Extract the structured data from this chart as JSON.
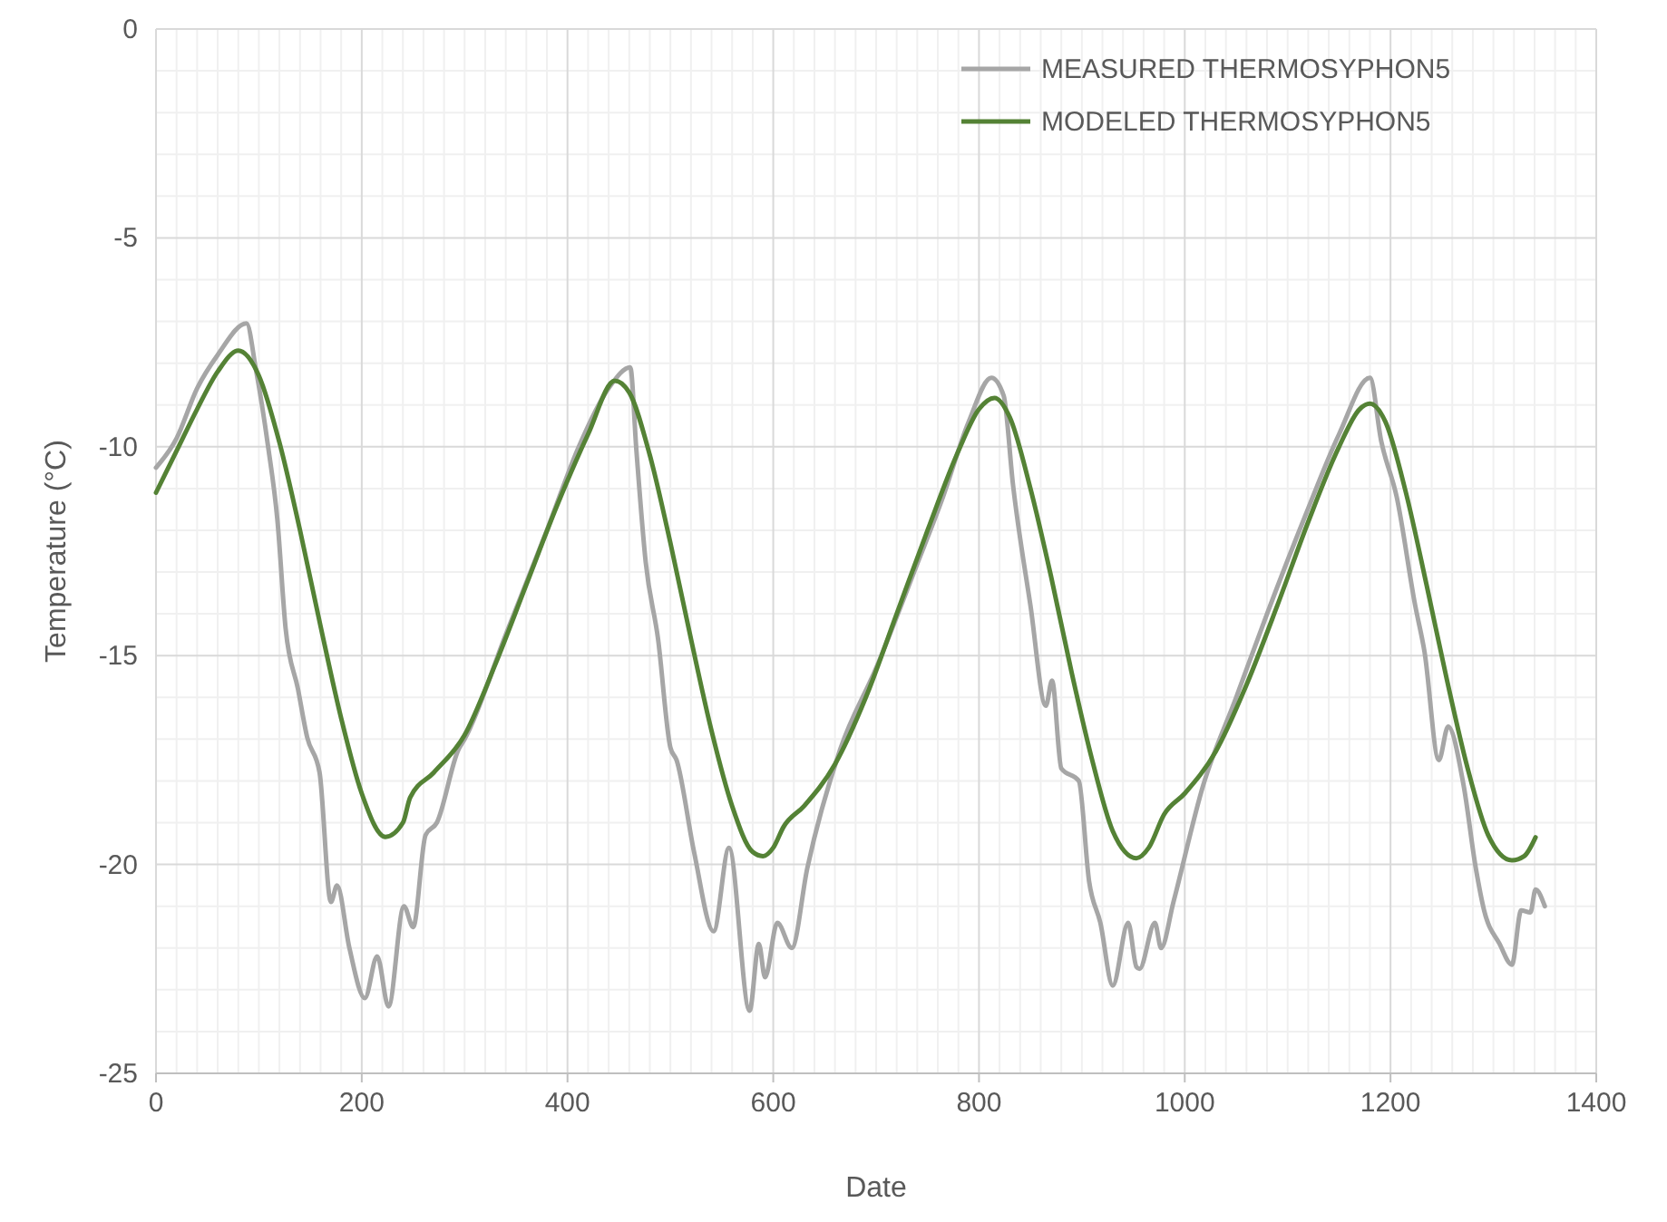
{
  "chart_data": {
    "type": "line",
    "xlabel": "Date",
    "ylabel": "Temperature (°C)",
    "xlim": [
      0,
      1400
    ],
    "ylim": [
      -25,
      0
    ],
    "xticks": [
      0,
      200,
      400,
      600,
      800,
      1000,
      1200,
      1400
    ],
    "yticks": [
      -25,
      -20,
      -15,
      -10,
      -5,
      0
    ],
    "grid": true,
    "legend": "top right",
    "line_style": "solid",
    "series": [
      {
        "name": "MEASURED THERMOSYPHON5",
        "color": "#a6a6a6",
        "x": [
          0,
          20,
          40,
          60,
          88,
          97,
          109,
          118,
          126,
          138,
          147,
          159,
          170,
          176,
          188,
          203,
          215,
          226,
          241,
          250,
          262,
          273,
          294,
          300,
          340,
          380,
          411,
          440,
          461,
          467,
          476,
          488,
          500,
          506,
          523,
          542,
          557,
          577,
          586,
          592,
          604,
          618,
          633,
          665,
          700,
          740,
          765,
          790,
          812,
          824,
          833,
          850,
          865,
          871,
          880,
          897,
          907,
          918,
          930,
          945,
          953,
          956,
          971,
          977,
          989,
          1018,
          1050,
          1080,
          1118,
          1150,
          1180,
          1191,
          1206,
          1224,
          1233,
          1247,
          1256,
          1271,
          1283,
          1291,
          1306,
          1318,
          1327,
          1336,
          1341,
          1350
        ],
        "values": [
          -10.5,
          -9.8,
          -8.6,
          -7.8,
          -7.05,
          -8.13,
          -10.0,
          -11.75,
          -14.35,
          -15.8,
          -16.96,
          -17.8,
          -20.9,
          -20.5,
          -22.0,
          -23.2,
          -22.2,
          -23.4,
          -21.0,
          -21.5,
          -19.3,
          -19.0,
          -17.25,
          -17.0,
          -14.5,
          -12.0,
          -10.0,
          -8.6,
          -8.1,
          -10.1,
          -12.76,
          -14.6,
          -17.2,
          -17.5,
          -19.7,
          -21.6,
          -19.6,
          -23.5,
          -21.9,
          -22.7,
          -21.4,
          -22.0,
          -20.1,
          -17.25,
          -15.3,
          -12.8,
          -11.2,
          -9.4,
          -8.35,
          -8.78,
          -10.9,
          -13.8,
          -16.2,
          -15.6,
          -17.7,
          -18.0,
          -20.4,
          -21.4,
          -22.9,
          -21.4,
          -22.45,
          -22.5,
          -21.4,
          -22.0,
          -20.9,
          -18.1,
          -16.0,
          -14.0,
          -11.6,
          -9.7,
          -8.35,
          -9.87,
          -11.2,
          -13.8,
          -14.9,
          -17.5,
          -16.7,
          -18.1,
          -20.1,
          -21.1,
          -21.9,
          -22.4,
          -21.1,
          -21.15,
          -20.6,
          -21.0
        ]
      },
      {
        "name": "MODELED THERMOSYPHON5",
        "color": "#548235",
        "x": [
          0,
          20,
          40,
          60,
          80,
          100,
          120,
          140,
          160,
          180,
          200,
          223,
          240,
          247,
          270,
          300,
          330,
          360,
          390,
          420,
          446,
          460,
          480,
          500,
          520,
          540,
          560,
          580,
          590,
          600,
          610,
          630,
          660,
          690,
          720,
          750,
          780,
          800,
          815,
          830,
          850,
          870,
          890,
          910,
          930,
          953,
          965,
          980,
          1000,
          1030,
          1060,
          1090,
          1120,
          1150,
          1170,
          1180,
          1195,
          1215,
          1235,
          1255,
          1275,
          1295,
          1318,
          1330,
          1341
        ],
        "values": [
          -11.1,
          -10.1,
          -9.1,
          -8.2,
          -7.7,
          -8.3,
          -9.9,
          -12.0,
          -14.3,
          -16.5,
          -18.3,
          -19.34,
          -19.0,
          -18.4,
          -17.8,
          -16.9,
          -15.2,
          -13.3,
          -11.4,
          -9.7,
          -8.42,
          -8.7,
          -10.2,
          -12.3,
          -14.6,
          -16.8,
          -18.6,
          -19.7,
          -19.8,
          -19.6,
          -19.1,
          -18.6,
          -17.6,
          -16.0,
          -14.0,
          -12.0,
          -10.1,
          -9.1,
          -8.83,
          -9.3,
          -11.0,
          -13.1,
          -15.4,
          -17.5,
          -19.2,
          -19.85,
          -19.6,
          -18.8,
          -18.3,
          -17.3,
          -15.7,
          -13.8,
          -11.8,
          -10.0,
          -9.1,
          -8.97,
          -9.4,
          -11.1,
          -13.3,
          -15.6,
          -17.7,
          -19.3,
          -19.9,
          -19.8,
          -19.35
        ]
      }
    ]
  }
}
